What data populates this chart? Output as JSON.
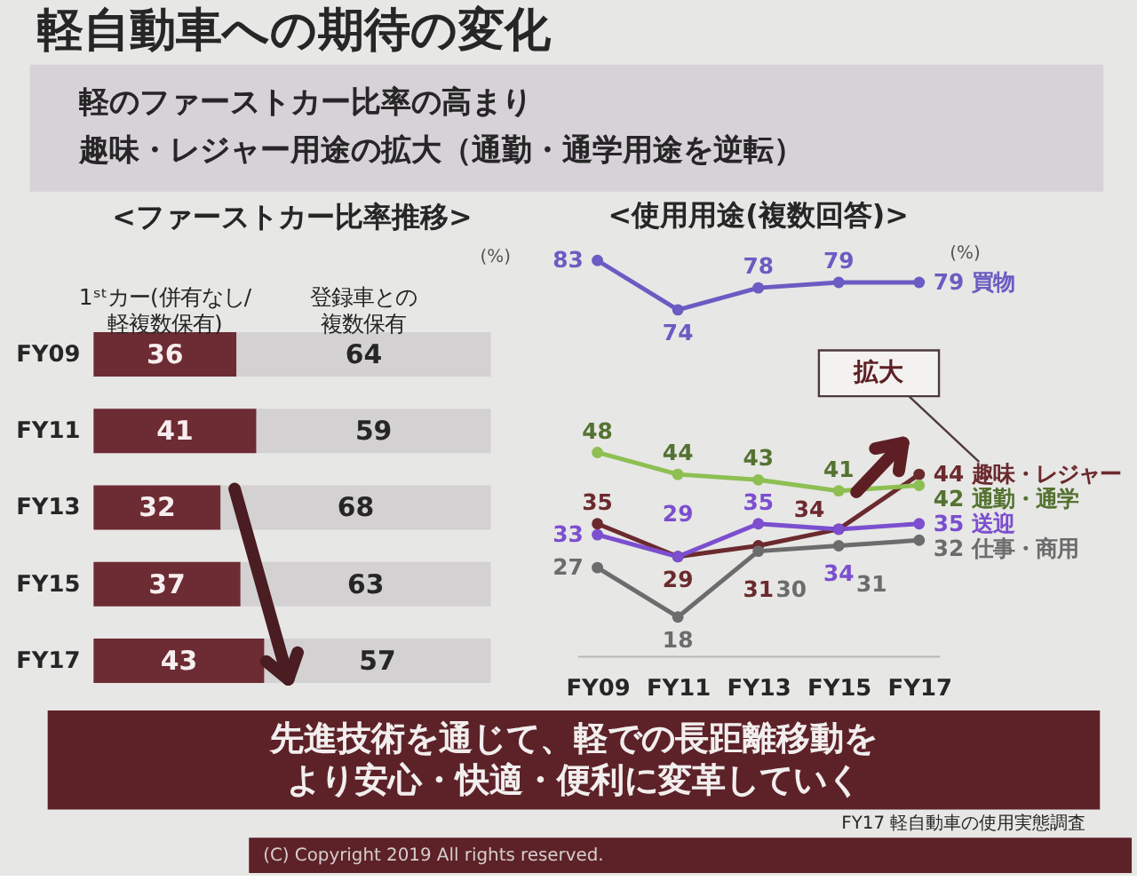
{
  "chart_data": [
    {
      "type": "other",
      "title": "軽自動車への期待の変化",
      "annotations": [
        "軽のファーストカー比率の高まり",
        "趣味・レジャー用途の拡大（通勤・通学用途を逆転）"
      ]
    },
    {
      "type": "bar",
      "orientation": "horizontal",
      "stacked": true,
      "title": "<ファーストカー比率推移>",
      "annotations": [
        "(%)"
      ],
      "categories": [
        "FY09",
        "FY11",
        "FY13",
        "FY15",
        "FY17"
      ],
      "series": [
        {
          "name": "1ˢᵗカー(併有なし/軽複数保有)",
          "color": "#6d2b33",
          "values": [
            36,
            41,
            32,
            37,
            43
          ]
        },
        {
          "name": "登録車との複数保有",
          "color": "#d4d1d2",
          "values": [
            64,
            59,
            68,
            63,
            57
          ]
        }
      ],
      "xlim": [
        0,
        100
      ],
      "tick_labels": "y",
      "data_labels": true
    },
    {
      "type": "line",
      "title": "<使用用途(複数回答)>",
      "annotations": [
        "(%)",
        "拡大"
      ],
      "categories": [
        "FY09",
        "FY11",
        "FY13",
        "FY15",
        "FY17"
      ],
      "series": [
        {
          "name": "買物",
          "color": "#6a5cc2",
          "values": [
            83,
            74,
            78,
            79,
            79
          ]
        },
        {
          "name": "趣味・レジャー",
          "color": "#6b2a2e",
          "values": [
            35,
            29,
            31,
            34,
            44
          ]
        },
        {
          "name": "通勤・通学",
          "color": "#8dbf52",
          "values": [
            48,
            44,
            43,
            41,
            42
          ]
        },
        {
          "name": "送迎",
          "color": "#7b4fcf",
          "values": [
            33,
            29,
            35,
            34,
            35
          ]
        },
        {
          "name": "仕事・商用",
          "color": "#6c6c6c",
          "values": [
            27,
            18,
            30,
            31,
            32
          ]
        }
      ],
      "tick_labels": "x",
      "data_labels": true,
      "marker": "circle"
    },
    {
      "type": "other",
      "annotations": [
        "先進技術を通じて、軽での長距離移動をより安心・快適・便利に変革していく",
        "FY17 軽自動車の使用実態調査",
        "(C) Copyright 2019 All rights reserved."
      ]
    }
  ]
}
